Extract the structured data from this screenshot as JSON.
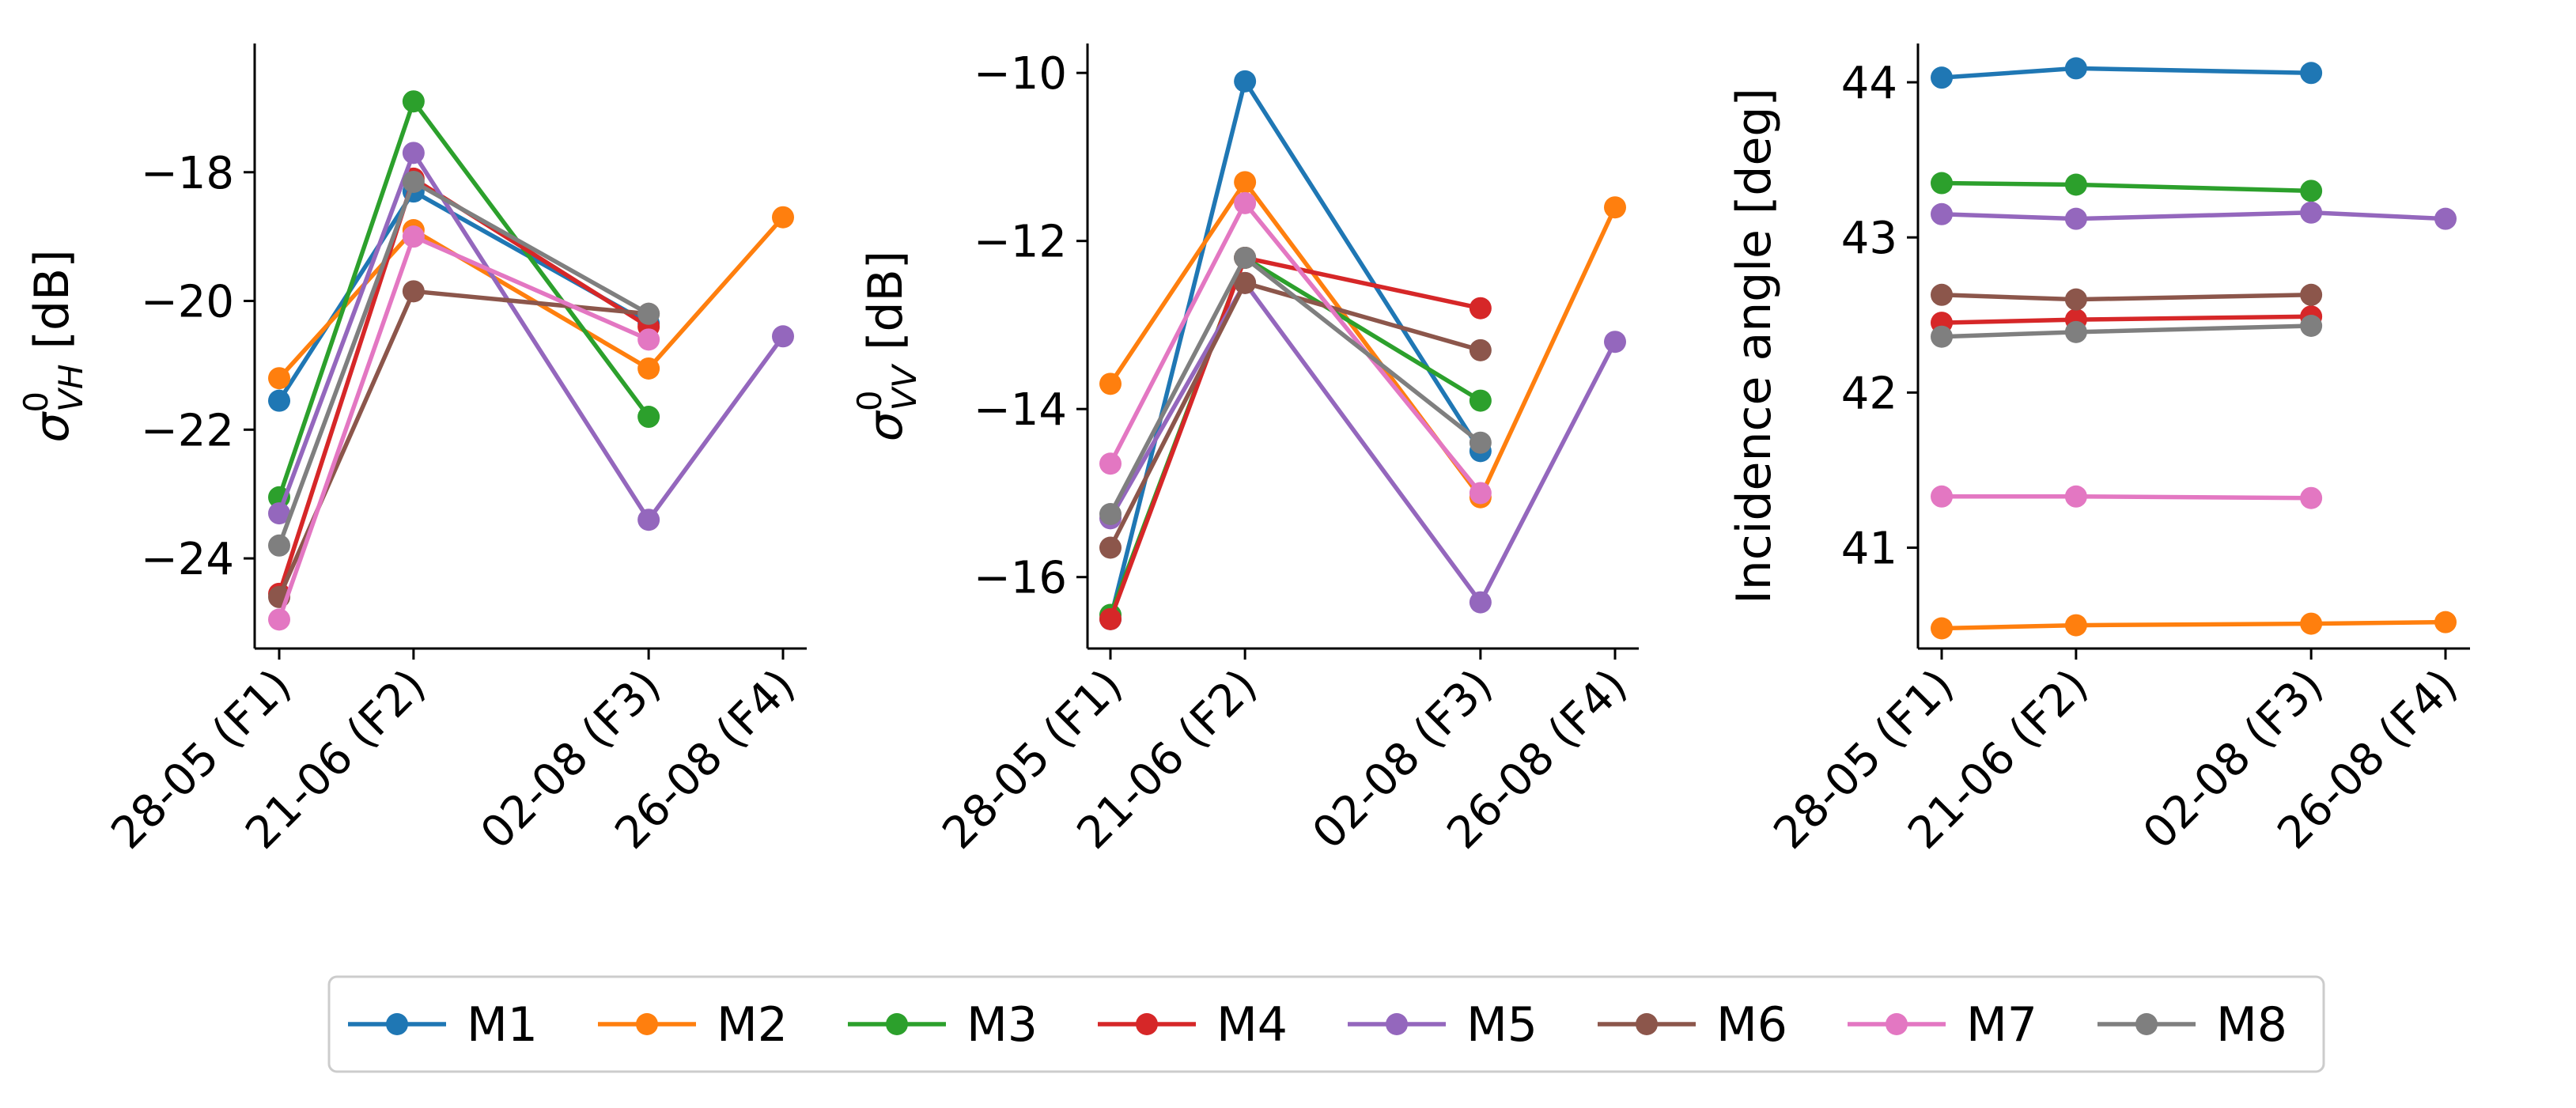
{
  "chart_data": [
    {
      "type": "line",
      "x": [
        "28-05 (F1)",
        "21-06 (F2)",
        "02-08 (F3)",
        "26-08 (F4)"
      ],
      "x_days": [
        0,
        24,
        66,
        90
      ],
      "ylabel": {
        "symbol": "σ",
        "sup": "0",
        "sub": "VH",
        "unit": " [dB]"
      },
      "yticks": [
        -18,
        -20,
        -22,
        -24
      ],
      "ylim": [
        -25.4,
        -16.0
      ],
      "series": [
        {
          "name": "M1",
          "values": [
            -21.55,
            -18.3,
            -20.35,
            null
          ]
        },
        {
          "name": "M2",
          "values": [
            -21.2,
            -18.9,
            -21.05,
            -18.7
          ]
        },
        {
          "name": "M3",
          "values": [
            -23.05,
            -16.9,
            -21.8,
            null
          ]
        },
        {
          "name": "M4",
          "values": [
            -24.55,
            -18.1,
            -20.4,
            null
          ]
        },
        {
          "name": "M5",
          "values": [
            -23.3,
            -17.7,
            -23.4,
            -20.55
          ]
        },
        {
          "name": "M6",
          "values": [
            -24.6,
            -19.85,
            -20.2,
            null
          ]
        },
        {
          "name": "M7",
          "values": [
            -24.95,
            -19.0,
            -20.6,
            null
          ]
        },
        {
          "name": "M8",
          "values": [
            -23.8,
            -18.15,
            -20.2,
            null
          ]
        }
      ]
    },
    {
      "type": "line",
      "x": [
        "28-05 (F1)",
        "21-06 (F2)",
        "02-08 (F3)",
        "26-08 (F4)"
      ],
      "x_days": [
        0,
        24,
        66,
        90
      ],
      "ylabel": {
        "symbol": "σ",
        "sup": "0",
        "sub": "VV",
        "unit": " [dB]"
      },
      "yticks": [
        -10,
        -12,
        -14,
        -16
      ],
      "ylim": [
        -16.85,
        -9.65
      ],
      "series": [
        {
          "name": "M1",
          "values": [
            -16.5,
            -10.1,
            -14.5,
            null
          ]
        },
        {
          "name": "M2",
          "values": [
            -13.7,
            -11.3,
            -15.05,
            -11.6
          ]
        },
        {
          "name": "M3",
          "values": [
            -16.45,
            -12.2,
            -13.9,
            null
          ]
        },
        {
          "name": "M4",
          "values": [
            -16.5,
            -12.2,
            -12.8,
            null
          ]
        },
        {
          "name": "M5",
          "values": [
            -15.3,
            -12.5,
            -16.3,
            -13.2
          ]
        },
        {
          "name": "M6",
          "values": [
            -15.65,
            -12.5,
            -13.3,
            null
          ]
        },
        {
          "name": "M7",
          "values": [
            -14.65,
            -11.55,
            -15.0,
            null
          ]
        },
        {
          "name": "M8",
          "values": [
            -15.25,
            -12.2,
            -14.4,
            null
          ]
        }
      ]
    },
    {
      "type": "line",
      "x": [
        "28-05 (F1)",
        "21-06 (F2)",
        "02-08 (F3)",
        "26-08 (F4)"
      ],
      "x_days": [
        0,
        24,
        66,
        90
      ],
      "ylabel": {
        "text": "Incidence angle [deg]"
      },
      "yticks": [
        44,
        43,
        42,
        41
      ],
      "ylim": [
        40.35,
        44.25
      ],
      "series": [
        {
          "name": "M1",
          "values": [
            44.03,
            44.09,
            44.06,
            null
          ]
        },
        {
          "name": "M2",
          "values": [
            40.48,
            40.5,
            40.51,
            40.52
          ]
        },
        {
          "name": "M3",
          "values": [
            43.35,
            43.34,
            43.3,
            null
          ]
        },
        {
          "name": "M4",
          "values": [
            42.45,
            42.47,
            42.49,
            null
          ]
        },
        {
          "name": "M5",
          "values": [
            43.15,
            43.12,
            43.16,
            43.12
          ]
        },
        {
          "name": "M6",
          "values": [
            42.63,
            42.6,
            42.63,
            null
          ]
        },
        {
          "name": "M7",
          "values": [
            41.33,
            41.33,
            41.32,
            null
          ]
        },
        {
          "name": "M8",
          "values": [
            42.36,
            42.39,
            42.43,
            null
          ]
        }
      ]
    }
  ],
  "legend": {
    "placement": "bottom-center",
    "entries": [
      "M1",
      "M2",
      "M3",
      "M4",
      "M5",
      "M6",
      "M7",
      "M8"
    ]
  },
  "colors": {
    "M1": "#1f77b4",
    "M2": "#ff7f0e",
    "M3": "#2ca02c",
    "M4": "#d62728",
    "M5": "#9467bd",
    "M6": "#8c564b",
    "M7": "#e377c2",
    "M8": "#7f7f7f"
  }
}
